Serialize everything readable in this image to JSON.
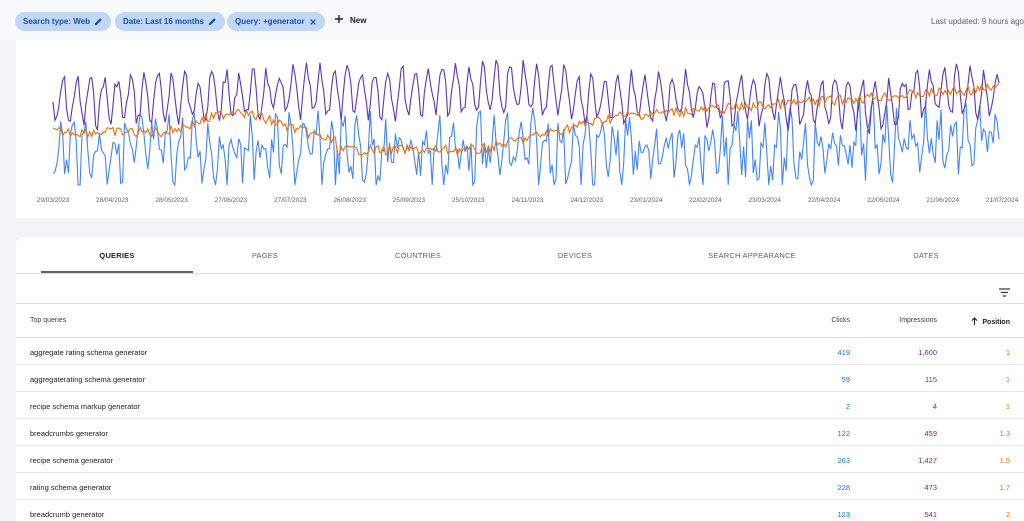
{
  "filters": {
    "chips": [
      {
        "label": "Search type: Web",
        "icon": "pencil-icon"
      },
      {
        "label": "Date: Last 16 months",
        "icon": "pencil-icon"
      },
      {
        "label": "Query: +generator",
        "icon": "close-icon"
      }
    ],
    "new_label": "New",
    "last_updated": "Last updated: 9 hours ago"
  },
  "chart_data": {
    "type": "line",
    "x_tick_labels": [
      "29/03/2023",
      "28/04/2023",
      "28/05/2023",
      "27/06/2023",
      "27/07/2023",
      "26/08/2023",
      "25/09/2023",
      "25/10/2023",
      "24/11/2023",
      "24/12/2023",
      "23/01/2024",
      "22/02/2024",
      "23/03/2024",
      "22/04/2024",
      "22/05/2024",
      "21/06/2024",
      "21/07/2024"
    ],
    "series": [
      {
        "key": "clicks",
        "color": "#4285f4"
      },
      {
        "key": "impressions",
        "color": "#5e35b1"
      },
      {
        "key": "position",
        "color": "#e8710a"
      }
    ],
    "grid": false,
    "axes_visible": false
  },
  "tabs": [
    "QUERIES",
    "PAGES",
    "COUNTRIES",
    "DEVICES",
    "SEARCH APPEARANCE",
    "DATES"
  ],
  "table": {
    "headers": {
      "query": "Top queries",
      "clicks": "Clicks",
      "impressions": "Impressions",
      "position": "Position"
    },
    "rows": [
      {
        "query": "aggregate rating schema generator",
        "clicks": "419",
        "impressions": "1,600",
        "position": "1"
      },
      {
        "query": "aggregaterating schema generator",
        "clicks": "59",
        "impressions": "115",
        "position": "1"
      },
      {
        "query": "recipe schema markup generator",
        "clicks": "2",
        "impressions": "4",
        "position": "1"
      },
      {
        "query": "breadcrumbs generator",
        "clicks": "122",
        "impressions": "459",
        "position": "1.3"
      },
      {
        "query": "recipe schema generator",
        "clicks": "263",
        "impressions": "1,427",
        "position": "1.5"
      },
      {
        "query": "rating schema generator",
        "clicks": "228",
        "impressions": "473",
        "position": "1.7"
      },
      {
        "query": "breadcrumb generator",
        "clicks": "123",
        "impressions": "541",
        "position": "2"
      }
    ]
  }
}
